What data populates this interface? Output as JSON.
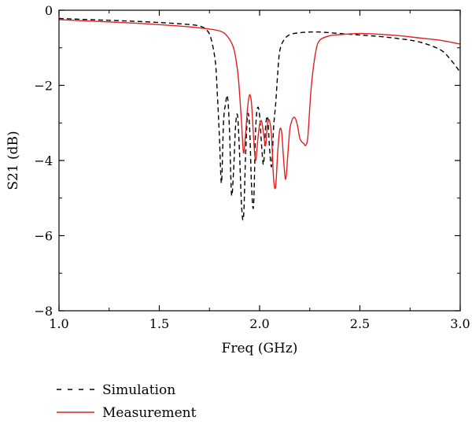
{
  "chart_data": {
    "type": "line",
    "title": "",
    "xlabel": "Freq (GHz)",
    "ylabel": "S21 (dB)",
    "xlim": [
      1.0,
      3.0
    ],
    "ylim": [
      -8,
      0
    ],
    "xticks": [
      1.0,
      1.5,
      2.0,
      2.5,
      3.0
    ],
    "xtick_labels": [
      "1.0",
      "1.5",
      "2.0",
      "2.5",
      "3.0"
    ],
    "yticks": [
      0,
      -2,
      -4,
      -6,
      -8
    ],
    "ytick_labels": [
      "0",
      "−2",
      "−4",
      "−6",
      "−8"
    ],
    "grid": false,
    "legend_position": "bottom-left, below plot",
    "series": [
      {
        "name": "Simulation",
        "color": "#000000",
        "style": "dashed",
        "x": [
          1.0,
          1.2,
          1.4,
          1.6,
          1.7,
          1.74,
          1.76,
          1.78,
          1.79,
          1.8,
          1.81,
          1.82,
          1.83,
          1.84,
          1.85,
          1.86,
          1.87,
          1.88,
          1.89,
          1.9,
          1.91,
          1.92,
          1.93,
          1.94,
          1.95,
          1.96,
          1.97,
          1.98,
          1.99,
          2.0,
          2.01,
          2.02,
          2.03,
          2.04,
          2.05,
          2.06,
          2.07,
          2.08,
          2.09,
          2.1,
          2.12,
          2.15,
          2.2,
          2.25,
          2.3,
          2.4,
          2.5,
          2.6,
          2.7,
          2.8,
          2.9,
          2.95,
          3.0
        ],
        "y": [
          -0.22,
          -0.26,
          -0.3,
          -0.36,
          -0.42,
          -0.55,
          -0.8,
          -1.4,
          -2.3,
          -3.4,
          -4.6,
          -3.0,
          -2.5,
          -2.3,
          -3.2,
          -4.9,
          -4.3,
          -3.1,
          -2.8,
          -3.8,
          -5.2,
          -5.5,
          -3.9,
          -2.8,
          -3.1,
          -4.7,
          -5.2,
          -3.2,
          -2.6,
          -2.8,
          -3.6,
          -4.1,
          -3.1,
          -2.85,
          -3.7,
          -4.15,
          -3.1,
          -2.5,
          -1.7,
          -1.1,
          -0.8,
          -0.65,
          -0.6,
          -0.58,
          -0.58,
          -0.62,
          -0.66,
          -0.7,
          -0.76,
          -0.85,
          -1.05,
          -1.3,
          -1.65
        ]
      },
      {
        "name": "Measurement",
        "color": "#e02020",
        "style": "solid",
        "x": [
          1.0,
          1.2,
          1.4,
          1.6,
          1.7,
          1.8,
          1.84,
          1.87,
          1.89,
          1.9,
          1.91,
          1.92,
          1.93,
          1.94,
          1.95,
          1.96,
          1.97,
          1.98,
          1.99,
          2.0,
          2.01,
          2.02,
          2.03,
          2.04,
          2.05,
          2.06,
          2.07,
          2.08,
          2.09,
          2.1,
          2.11,
          2.12,
          2.13,
          2.14,
          2.15,
          2.16,
          2.17,
          2.18,
          2.19,
          2.2,
          2.21,
          2.22,
          2.23,
          2.24,
          2.25,
          2.26,
          2.28,
          2.3,
          2.35,
          2.4,
          2.5,
          2.6,
          2.7,
          2.8,
          2.9,
          3.0
        ],
        "y": [
          -0.25,
          -0.3,
          -0.35,
          -0.42,
          -0.47,
          -0.55,
          -0.7,
          -1.0,
          -1.6,
          -2.2,
          -3.0,
          -3.8,
          -3.3,
          -2.6,
          -2.25,
          -2.5,
          -3.4,
          -4.0,
          -3.5,
          -3.05,
          -2.95,
          -3.3,
          -3.6,
          -3.0,
          -2.95,
          -3.4,
          -4.5,
          -4.7,
          -3.8,
          -3.2,
          -3.25,
          -4.0,
          -4.5,
          -3.9,
          -3.2,
          -2.95,
          -2.85,
          -2.9,
          -3.1,
          -3.4,
          -3.5,
          -3.55,
          -3.6,
          -3.4,
          -2.6,
          -1.9,
          -1.1,
          -0.8,
          -0.68,
          -0.65,
          -0.62,
          -0.64,
          -0.68,
          -0.74,
          -0.8,
          -0.9
        ]
      }
    ]
  }
}
